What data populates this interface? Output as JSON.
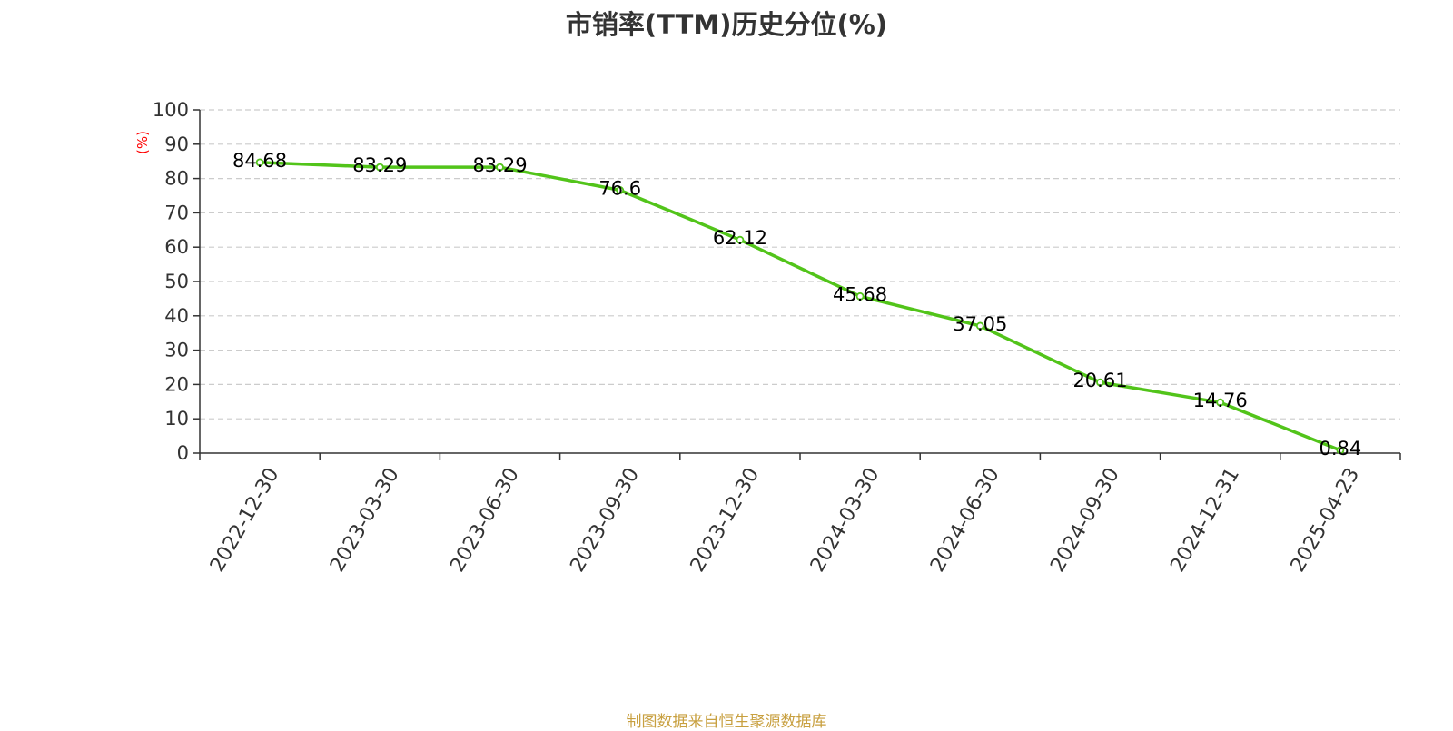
{
  "chart_data": {
    "type": "line",
    "title": "市销率(TTM)历史分位(%)",
    "ylabel": "(%)",
    "xlabel": "",
    "ylim": [
      0,
      100
    ],
    "yticks": [
      0,
      10,
      20,
      30,
      40,
      50,
      60,
      70,
      80,
      90,
      100
    ],
    "categories": [
      "2022-12-30",
      "2023-03-30",
      "2023-06-30",
      "2023-09-30",
      "2023-12-30",
      "2024-03-30",
      "2024-06-30",
      "2024-09-30",
      "2024-12-31",
      "2025-04-23"
    ],
    "values": [
      84.68,
      83.29,
      83.29,
      76.6,
      62.12,
      45.68,
      37.05,
      20.61,
      14.76,
      0.84
    ],
    "value_labels": [
      "84.68",
      "83.29",
      "83.29",
      "76.6",
      "62.12",
      "45.68",
      "37.05",
      "20.61",
      "14.76",
      "0.84"
    ],
    "grid": "horizontal dashed",
    "legend": "none"
  },
  "colors": {
    "line": "#52c41a",
    "marker_fill": "#ffffff",
    "grid": "#cccccc",
    "axis": "#333333",
    "ylabel": "#ff0000",
    "title": "#333333",
    "footer": "#c8a040"
  },
  "footer": {
    "source": "制图数据来自恒生聚源数据库"
  }
}
